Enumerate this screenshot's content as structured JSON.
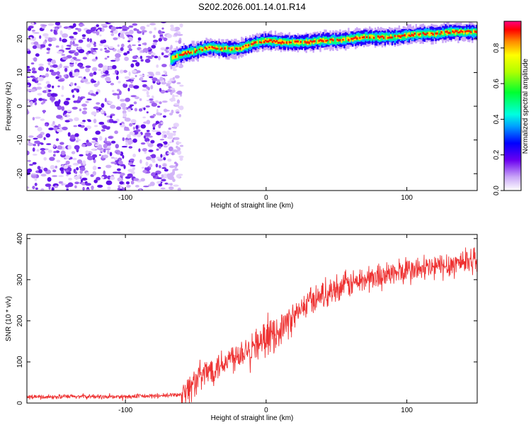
{
  "title": "S202.2026.001.14.01.R14",
  "chart_data": [
    {
      "type": "heatmap",
      "xlabel": "Height of straight line (km)",
      "ylabel": "Frequency (Hz)",
      "xlim": [
        -170,
        150
      ],
      "ylim": [
        -25,
        25
      ],
      "xticks": [
        -100,
        0,
        100
      ],
      "yticks": [
        -20,
        -10,
        0,
        10,
        20
      ],
      "colorbar": {
        "label": "Normalized spectral amplitude",
        "range": [
          0,
          0.95
        ],
        "ticks": [
          0.0,
          0.2,
          0.4,
          0.6,
          0.8
        ]
      },
      "ridge_frequency": {
        "x": [
          -68,
          -60,
          -50,
          -40,
          -30,
          -20,
          -10,
          0,
          10,
          20,
          30,
          40,
          50,
          60,
          70,
          80,
          90,
          100,
          110,
          120,
          130,
          140,
          150
        ],
        "y": [
          14,
          15.5,
          16.5,
          17.5,
          17,
          17,
          18.5,
          19.5,
          19,
          19,
          19,
          19.5,
          19.5,
          20,
          20.5,
          20.5,
          20.5,
          21,
          21.5,
          21.5,
          22,
          22,
          22
        ]
      },
      "noise_region": {
        "x_range": [
          -170,
          -60
        ],
        "y_range": [
          -25,
          25
        ]
      }
    },
    {
      "type": "line",
      "xlabel": "Height of straight line (km)",
      "ylabel": "SNR (10 * v/v)",
      "xlim": [
        -170,
        150
      ],
      "ylim": [
        0,
        410
      ],
      "xticks": [
        -100,
        0,
        100
      ],
      "yticks": [
        0,
        100,
        200,
        300,
        400
      ],
      "color": "#ee3333",
      "series": [
        {
          "x": [
            -170,
            -150,
            -130,
            -110,
            -90,
            -70,
            -60,
            -55,
            -50,
            -40,
            -30,
            -20,
            -10,
            0,
            10,
            20,
            30,
            40,
            50,
            60,
            70,
            80,
            90,
            100,
            110,
            120,
            130,
            140,
            150
          ],
          "values": [
            15,
            15,
            16,
            15,
            16,
            18,
            22,
            35,
            55,
            80,
            100,
            120,
            140,
            155,
            180,
            210,
            245,
            265,
            280,
            290,
            300,
            310,
            315,
            320,
            325,
            330,
            335,
            345,
            350
          ]
        }
      ]
    }
  ]
}
